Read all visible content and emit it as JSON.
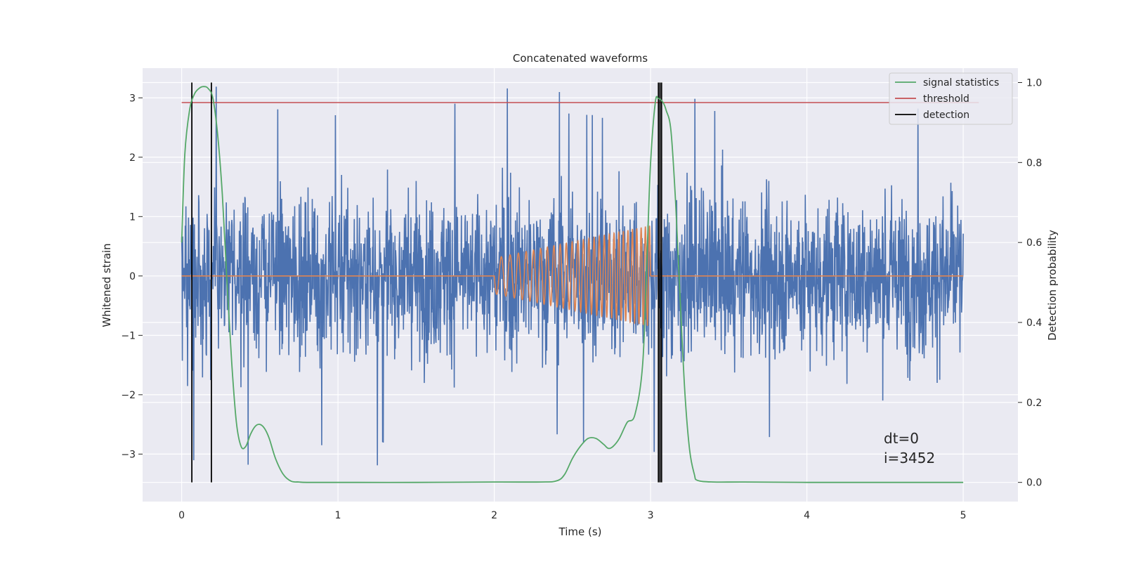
{
  "chart_data": {
    "type": "line",
    "title": "Concatenated waveforms",
    "xlabel": "Time (s)",
    "ylabel": "Whitened strain",
    "ylabel_right": "Detection probability",
    "xlim": [
      -0.25,
      5.35
    ],
    "ylim": [
      -3.8,
      3.5
    ],
    "ylim_right": [
      -0.048,
      1.036
    ],
    "xticks": [
      0,
      1,
      2,
      3,
      4,
      5
    ],
    "yticks": [
      -3,
      -2,
      -1,
      0,
      1,
      2,
      3
    ],
    "yticks_right": [
      0.0,
      0.2,
      0.4,
      0.6,
      0.8,
      1.0
    ],
    "xtick_labels": [
      "0",
      "1",
      "2",
      "3",
      "4",
      "5"
    ],
    "ytick_labels": [
      "−3",
      "−2",
      "−1",
      "0",
      "1",
      "2",
      "3"
    ],
    "ytick_right_labels": [
      "0.0",
      "0.2",
      "0.4",
      "0.6",
      "0.8",
      "1.0"
    ],
    "grid": true,
    "legend_position": "top-right",
    "series": [
      {
        "name": "",
        "role": "strain noise",
        "color": "#4c72b0",
        "axis": "left",
        "description": "whitened strain noise from 0 to 5 s, values mostly within about -2.5 to 2.5 with spikes near ±3.2"
      },
      {
        "name": "",
        "role": "injected chirp",
        "color": "#dd8452",
        "axis": "left",
        "x_range": [
          0,
          5
        ],
        "chirp_start": 2.0,
        "chirp_end": 3.0,
        "chirp_amplitude": [
          0.3,
          0.85
        ],
        "chirp_cycles": 27
      },
      {
        "name": "signal statistics",
        "color": "#55a868",
        "axis": "right",
        "x": [
          0,
          0.02,
          0.05,
          0.08,
          0.11,
          0.14,
          0.17,
          0.2,
          0.23,
          0.26,
          0.29,
          0.32,
          0.35,
          0.38,
          0.41,
          0.44,
          0.47,
          0.5,
          0.53,
          0.56,
          0.6,
          0.65,
          0.7,
          0.75,
          0.8,
          1.0,
          1.5,
          2.0,
          2.3,
          2.4,
          2.45,
          2.5,
          2.55,
          2.6,
          2.65,
          2.7,
          2.73,
          2.76,
          2.8,
          2.85,
          2.9,
          2.95,
          2.98,
          3.0,
          3.03,
          3.05,
          3.08,
          3.1,
          3.13,
          3.16,
          3.19,
          3.22,
          3.25,
          3.28,
          3.3,
          3.4,
          3.6,
          4.0,
          4.5,
          5.0
        ],
        "y": [
          0.6,
          0.82,
          0.93,
          0.97,
          0.985,
          0.99,
          0.985,
          0.96,
          0.87,
          0.72,
          0.5,
          0.3,
          0.15,
          0.09,
          0.09,
          0.12,
          0.14,
          0.145,
          0.135,
          0.11,
          0.06,
          0.02,
          0.003,
          0.001,
          0.0,
          0.0,
          0.0,
          0.001,
          0.001,
          0.004,
          0.02,
          0.06,
          0.09,
          0.11,
          0.11,
          0.095,
          0.085,
          0.09,
          0.11,
          0.15,
          0.17,
          0.3,
          0.6,
          0.8,
          0.95,
          0.96,
          0.95,
          0.93,
          0.88,
          0.7,
          0.45,
          0.22,
          0.08,
          0.02,
          0.005,
          0.001,
          0.001,
          0.0,
          0.0,
          0.0
        ]
      },
      {
        "name": "threshold",
        "color": "#c44e52",
        "axis": "right",
        "x_range": [
          0,
          5.1
        ],
        "value": 0.95
      },
      {
        "name": "detection",
        "color": "#000000",
        "axis": "right",
        "x": [
          0.065,
          0.19,
          3.05,
          3.06,
          3.07
        ],
        "y_range": [
          0.0,
          1.0
        ]
      }
    ],
    "annotations": [
      "dt=0",
      "i=3452"
    ]
  }
}
